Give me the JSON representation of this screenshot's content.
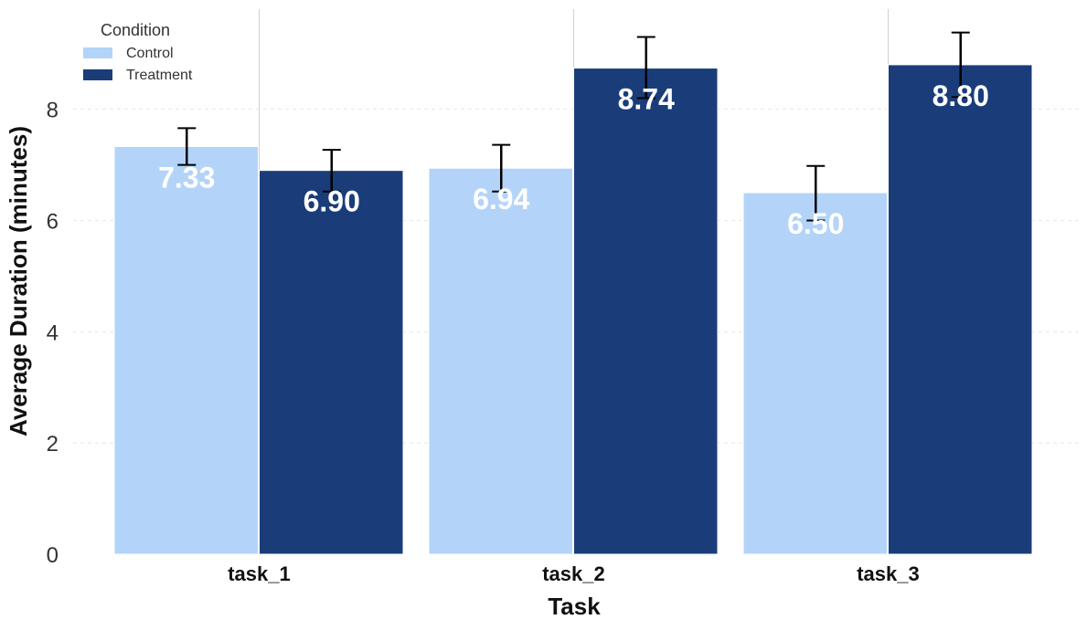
{
  "chart_data": {
    "type": "bar",
    "xlabel": "Task",
    "ylabel": "Average Duration (minutes)",
    "categories": [
      "task_1",
      "task_2",
      "task_3"
    ],
    "ylim": [
      0,
      9.8
    ],
    "yticks": [
      0,
      2,
      4,
      6,
      8
    ],
    "grid": "horizontal dashed",
    "legend": {
      "title": "Condition",
      "placement": "top-left"
    },
    "series": [
      {
        "name": "Control",
        "color": "#b3d4f8",
        "values": [
          7.33,
          6.94,
          6.5
        ],
        "labels": [
          "7.33",
          "6.94",
          "6.50"
        ],
        "error_low": [
          7.0,
          6.52,
          6.0
        ],
        "error_high": [
          7.66,
          7.36,
          6.98
        ]
      },
      {
        "name": "Treatment",
        "color": "#1a3d7a",
        "values": [
          6.9,
          8.74,
          8.8
        ],
        "labels": [
          "6.90",
          "8.74",
          "8.80"
        ],
        "error_low": [
          6.52,
          8.2,
          8.22
        ],
        "error_high": [
          7.27,
          9.3,
          9.38
        ]
      }
    ]
  }
}
